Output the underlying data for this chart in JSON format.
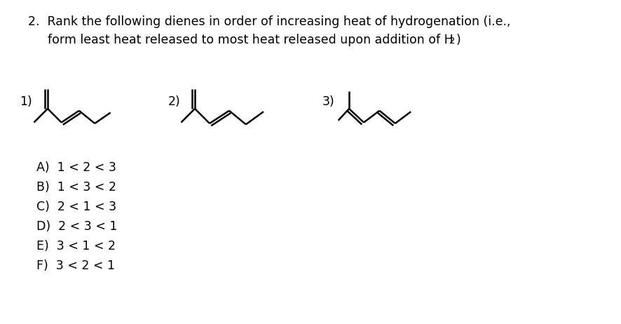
{
  "bg_color": "#ffffff",
  "text_color": "#000000",
  "title_line1": "2.  Rank the following dienes in order of increasing heat of hydrogenation (i.e.,",
  "title_line2": "form least heat released to most heat released upon addition of H",
  "title_h2_sub": "2",
  "title_end": ")",
  "title_fontsize": 12.5,
  "label_fontsize": 12.5,
  "options_fontsize": 12.5,
  "options": [
    "A)  1 < 2 < 3",
    "B)  1 < 3 < 2",
    "C)  2 < 1 < 3",
    "D)  2 < 3 < 1",
    "E)  3 < 1 < 2",
    "F)  3 < 2 < 1"
  ],
  "struct_labels": [
    "1)",
    "2)",
    "3)"
  ],
  "lw": 1.8
}
